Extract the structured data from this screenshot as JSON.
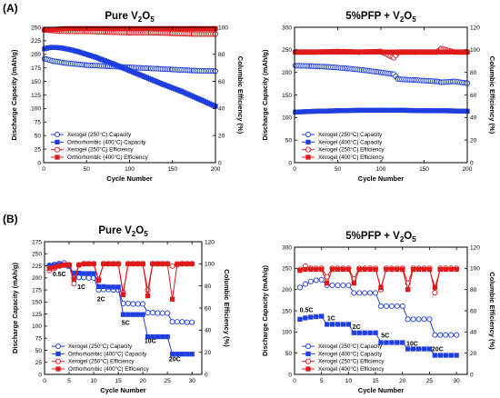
{
  "panel_labels": [
    "(A)",
    "(B)"
  ],
  "chart_data": [
    {
      "type": "line",
      "title": "Pure V2O5",
      "xlabel": "Cycle Number",
      "ylabel": "Discharge Capacity (mAh/g)",
      "y2label": "Columbic Efficiency (%)",
      "xlim": [
        0,
        200
      ],
      "ylim": [
        0,
        250
      ],
      "y2lim": [
        0,
        100
      ],
      "xticks": [
        0,
        50,
        100,
        150,
        200
      ],
      "yticks": [
        0,
        25,
        50,
        75,
        100,
        125,
        150,
        175,
        200,
        225,
        250
      ],
      "y2ticks": [
        0,
        20,
        40,
        60,
        80,
        100
      ],
      "legend_position": "bottom-left",
      "series": [
        {
          "name": "Xerogel (250°C) Capacity",
          "axis": "left",
          "color": "#1f3fe0",
          "marker": "open-circle",
          "x": [
            1,
            10,
            25,
            50,
            75,
            100,
            125,
            150,
            175,
            200
          ],
          "y": [
            192,
            188,
            184,
            180,
            178,
            176,
            174,
            172,
            170,
            169
          ]
        },
        {
          "name": "Orthorhombic (400°C) Capacity",
          "axis": "left",
          "color": "#1f3fe0",
          "marker": "filled-square",
          "x": [
            1,
            5,
            10,
            20,
            30,
            40,
            60,
            80,
            100,
            120,
            140,
            160,
            180,
            200
          ],
          "y": [
            210,
            212,
            213,
            212,
            209,
            205,
            195,
            183,
            170,
            157,
            144,
            132,
            118,
            104
          ]
        },
        {
          "name": "Xerogel (250°C) Efficiency",
          "axis": "right",
          "color": "#e01a1a",
          "marker": "open-circle",
          "x": [
            1,
            25,
            50,
            75,
            100,
            125,
            150,
            175,
            200
          ],
          "y": [
            98,
            97,
            97,
            96.5,
            96,
            96,
            95.5,
            95,
            95
          ]
        },
        {
          "name": "Orthorhombic (400°C) Efficiency",
          "axis": "right",
          "color": "#e01a1a",
          "marker": "filled-square",
          "x": [
            1,
            25,
            50,
            75,
            100,
            125,
            150,
            175,
            200
          ],
          "y": [
            98,
            99,
            99,
            99,
            99,
            99,
            99,
            99,
            99
          ]
        }
      ]
    },
    {
      "type": "line",
      "title": "5%PFP + V2O5",
      "xlabel": "Cycle Number",
      "ylabel": "Discharge Capacity (mAh/g)",
      "y2label": "Columbic Efficiency (%)",
      "xlim": [
        0,
        200
      ],
      "ylim": [
        0,
        300
      ],
      "y2lim": [
        0,
        120
      ],
      "xticks": [
        0,
        50,
        100,
        150,
        200
      ],
      "yticks": [
        0,
        50,
        100,
        150,
        200,
        250,
        300
      ],
      "y2ticks": [
        0,
        20,
        40,
        60,
        80,
        100,
        120
      ],
      "legend_position": "bottom-left",
      "series": [
        {
          "name": "Xerogel (250°C) Capacity",
          "axis": "left",
          "color": "#1f3fe0",
          "marker": "open-circle",
          "x": [
            1,
            20,
            40,
            60,
            80,
            100,
            115,
            120,
            140,
            165,
            170,
            185,
            200
          ],
          "y": [
            215,
            214,
            212,
            209,
            205,
            200,
            196,
            185,
            183,
            180,
            178,
            180,
            176
          ]
        },
        {
          "name": "Xerogel (400°C) Capacity",
          "axis": "left",
          "color": "#1f3fe0",
          "marker": "filled-square",
          "x": [
            1,
            25,
            50,
            75,
            100,
            125,
            150,
            175,
            200
          ],
          "y": [
            112,
            114,
            115,
            116,
            116,
            116,
            115,
            115,
            114
          ]
        },
        {
          "name": "Xerogel (250°C) Efficiency",
          "axis": "right",
          "color": "#e01a1a",
          "marker": "open-circle",
          "x": [
            1,
            25,
            50,
            75,
            100,
            115,
            120,
            140,
            165,
            170,
            185,
            200
          ],
          "y": [
            98,
            98,
            98.5,
            98,
            98.5,
            93,
            98,
            98,
            98,
            101,
            98,
            98
          ]
        },
        {
          "name": "Xerogel (400°C) Efficiency",
          "axis": "right",
          "color": "#e01a1a",
          "marker": "filled-square",
          "x": [
            1,
            25,
            50,
            75,
            100,
            125,
            150,
            175,
            200
          ],
          "y": [
            98,
            98,
            98,
            98,
            98,
            98,
            98,
            98,
            98
          ]
        }
      ]
    },
    {
      "type": "line",
      "title": "Pure V2O5",
      "xlabel": "Cycle Number",
      "ylabel": "Discharge Capacity (mAh/g)",
      "y2label": "Columbic Efficiency (%)",
      "xlim": [
        0,
        32
      ],
      "ylim": [
        0,
        275
      ],
      "y2lim": [
        0,
        120
      ],
      "xticks": [
        0,
        5,
        10,
        15,
        20,
        25,
        30
      ],
      "yticks": [
        0,
        25,
        50,
        75,
        100,
        125,
        150,
        175,
        200,
        225,
        250,
        275
      ],
      "y2ticks": [
        0,
        20,
        40,
        60,
        80,
        100,
        120
      ],
      "legend_position": "bottom-left",
      "annotations": [
        {
          "text": "0.5C",
          "x": 3,
          "y": 203
        },
        {
          "text": "1C",
          "x": 7.5,
          "y": 177
        },
        {
          "text": "2C",
          "x": 11.5,
          "y": 152
        },
        {
          "text": "5C",
          "x": 16.5,
          "y": 103
        },
        {
          "text": "10C",
          "x": 21.5,
          "y": 65
        },
        {
          "text": "20C",
          "x": 26.5,
          "y": 27
        }
      ],
      "series": [
        {
          "name": "Xerogel (250°C) Capacity",
          "axis": "left",
          "color": "#1f3fe0",
          "marker": "open-circle",
          "x": [
            1,
            2,
            3,
            4,
            5,
            6,
            7,
            8,
            9,
            10,
            11,
            12,
            13,
            14,
            15,
            16,
            17,
            18,
            19,
            20,
            21,
            22,
            23,
            24,
            25,
            26,
            27,
            28,
            29,
            30
          ],
          "y": [
            226,
            228,
            230,
            231,
            227,
            200,
            201,
            201,
            200,
            200,
            175,
            176,
            176,
            175,
            175,
            147,
            147,
            146,
            146,
            146,
            128,
            128,
            127,
            127,
            127,
            109,
            109,
            109,
            108,
            108
          ]
        },
        {
          "name": "Orthorhombic (400°C) Capacity",
          "axis": "left",
          "color": "#1f3fe0",
          "marker": "filled-square",
          "x": [
            1,
            2,
            3,
            4,
            5,
            6,
            7,
            8,
            9,
            10,
            11,
            12,
            13,
            14,
            15,
            16,
            17,
            18,
            19,
            20,
            21,
            22,
            23,
            24,
            25,
            26,
            27,
            28,
            29,
            30
          ],
          "y": [
            225,
            226,
            228,
            226,
            224,
            210,
            210,
            209,
            209,
            209,
            182,
            182,
            181,
            181,
            181,
            124,
            124,
            124,
            124,
            124,
            78,
            78,
            78,
            78,
            78,
            42,
            42,
            42,
            42,
            42
          ]
        },
        {
          "name": "Xerogel (250°C) Efficiency",
          "axis": "right",
          "color": "#e01a1a",
          "marker": "open-circle",
          "x": [
            1,
            2,
            3,
            4,
            5,
            6,
            7,
            8,
            9,
            10,
            11,
            12,
            13,
            14,
            15,
            16,
            17,
            18,
            19,
            20,
            21,
            22,
            23,
            24,
            25,
            26,
            27,
            28,
            29,
            30
          ],
          "y": [
            94,
            96,
            98,
            99,
            99,
            82,
            99,
            100,
            100,
            100,
            86,
            100,
            100,
            100,
            100,
            74,
            100,
            100,
            100,
            100,
            76,
            100,
            100,
            100,
            100,
            98,
            99,
            100,
            100,
            100
          ]
        },
        {
          "name": "Orthorhombic (400°C) Efficiency",
          "axis": "right",
          "color": "#e01a1a",
          "marker": "filled-square",
          "x": [
            1,
            2,
            3,
            4,
            5,
            6,
            7,
            8,
            9,
            10,
            11,
            12,
            13,
            14,
            15,
            16,
            17,
            18,
            19,
            20,
            21,
            22,
            23,
            24,
            25,
            26,
            27,
            28,
            29,
            30
          ],
          "y": [
            96,
            97,
            98,
            99,
            99,
            86,
            99,
            100,
            100,
            100,
            85,
            100,
            100,
            100,
            100,
            72,
            100,
            100,
            100,
            100,
            71,
            100,
            100,
            100,
            100,
            68,
            100,
            100,
            100,
            100
          ]
        }
      ]
    },
    {
      "type": "line",
      "title": "5%PFP + V2O5",
      "xlabel": "Cycle Number",
      "ylabel": "Discharge Capacity (mAh/g)",
      "y2label": "Columbic Efficiency (%)",
      "xlim": [
        0,
        32
      ],
      "ylim": [
        0,
        300
      ],
      "y2lim": [
        0,
        120
      ],
      "xticks": [
        0,
        5,
        10,
        15,
        20,
        25,
        30
      ],
      "yticks": [
        0,
        50,
        100,
        150,
        200,
        250,
        300
      ],
      "y2ticks": [
        0,
        20,
        40,
        60,
        80,
        100,
        120
      ],
      "legend_position": "bottom-left",
      "annotations": [
        {
          "text": "0.5C",
          "x": 2.2,
          "y": 147
        },
        {
          "text": "1C",
          "x": 6.8,
          "y": 127
        },
        {
          "text": "2C",
          "x": 11.5,
          "y": 107
        },
        {
          "text": "5C",
          "x": 16.8,
          "y": 87
        },
        {
          "text": "10C",
          "x": 21.8,
          "y": 67
        },
        {
          "text": "20C",
          "x": 26.5,
          "y": 55
        }
      ],
      "series": [
        {
          "name": "Xerogel (250°C) Capacity",
          "axis": "left",
          "color": "#1f3fe0",
          "marker": "open-circle",
          "x": [
            1,
            2,
            3,
            4,
            5,
            6,
            7,
            8,
            9,
            10,
            11,
            12,
            13,
            14,
            15,
            16,
            17,
            18,
            19,
            20,
            21,
            22,
            23,
            24,
            25,
            26,
            27,
            28,
            29,
            30
          ],
          "y": [
            205,
            213,
            219,
            222,
            223,
            210,
            210,
            210,
            210,
            210,
            192,
            192,
            192,
            192,
            192,
            161,
            161,
            161,
            161,
            161,
            130,
            130,
            130,
            130,
            130,
            93,
            93,
            93,
            93,
            93
          ]
        },
        {
          "name": "Xerogel (400°C) Capacity",
          "axis": "left",
          "color": "#1f3fe0",
          "marker": "filled-square",
          "x": [
            1,
            2,
            3,
            4,
            5,
            6,
            7,
            8,
            9,
            10,
            11,
            12,
            13,
            14,
            15,
            16,
            17,
            18,
            19,
            20,
            21,
            22,
            23,
            24,
            25,
            26,
            27,
            28,
            29,
            30
          ],
          "y": [
            130,
            133,
            135,
            136,
            137,
            118,
            118,
            118,
            118,
            118,
            98,
            98,
            98,
            98,
            98,
            75,
            75,
            75,
            75,
            75,
            60,
            60,
            60,
            60,
            60,
            45,
            45,
            45,
            45,
            45
          ]
        },
        {
          "name": "Xerogel (250°C) Efficiency",
          "axis": "right",
          "color": "#e01a1a",
          "marker": "open-circle",
          "x": [
            1,
            2,
            3,
            4,
            5,
            6,
            7,
            8,
            9,
            10,
            11,
            12,
            13,
            14,
            15,
            16,
            17,
            18,
            19,
            20,
            21,
            22,
            23,
            24,
            25,
            26,
            27,
            28,
            29,
            30
          ],
          "y": [
            99,
            102,
            100,
            100,
            100,
            92,
            100,
            100,
            100,
            100,
            90,
            100,
            100,
            100,
            100,
            80,
            100,
            100,
            100,
            100,
            86,
            100,
            100,
            100,
            100,
            77,
            100,
            100,
            100,
            100
          ]
        },
        {
          "name": "Xerogel (400°C) Efficiency",
          "axis": "right",
          "color": "#e01a1a",
          "marker": "filled-square",
          "x": [
            1,
            2,
            3,
            4,
            5,
            6,
            7,
            8,
            9,
            10,
            11,
            12,
            13,
            14,
            15,
            16,
            17,
            18,
            19,
            20,
            21,
            22,
            23,
            24,
            25,
            26,
            27,
            28,
            29,
            30
          ],
          "y": [
            98,
            99,
            99,
            99,
            99,
            86,
            99,
            99,
            99,
            99,
            86,
            99,
            99,
            99,
            99,
            82,
            99,
            99,
            99,
            99,
            80,
            99,
            99,
            99,
            99,
            82,
            99,
            99,
            99,
            99
          ]
        }
      ]
    }
  ]
}
